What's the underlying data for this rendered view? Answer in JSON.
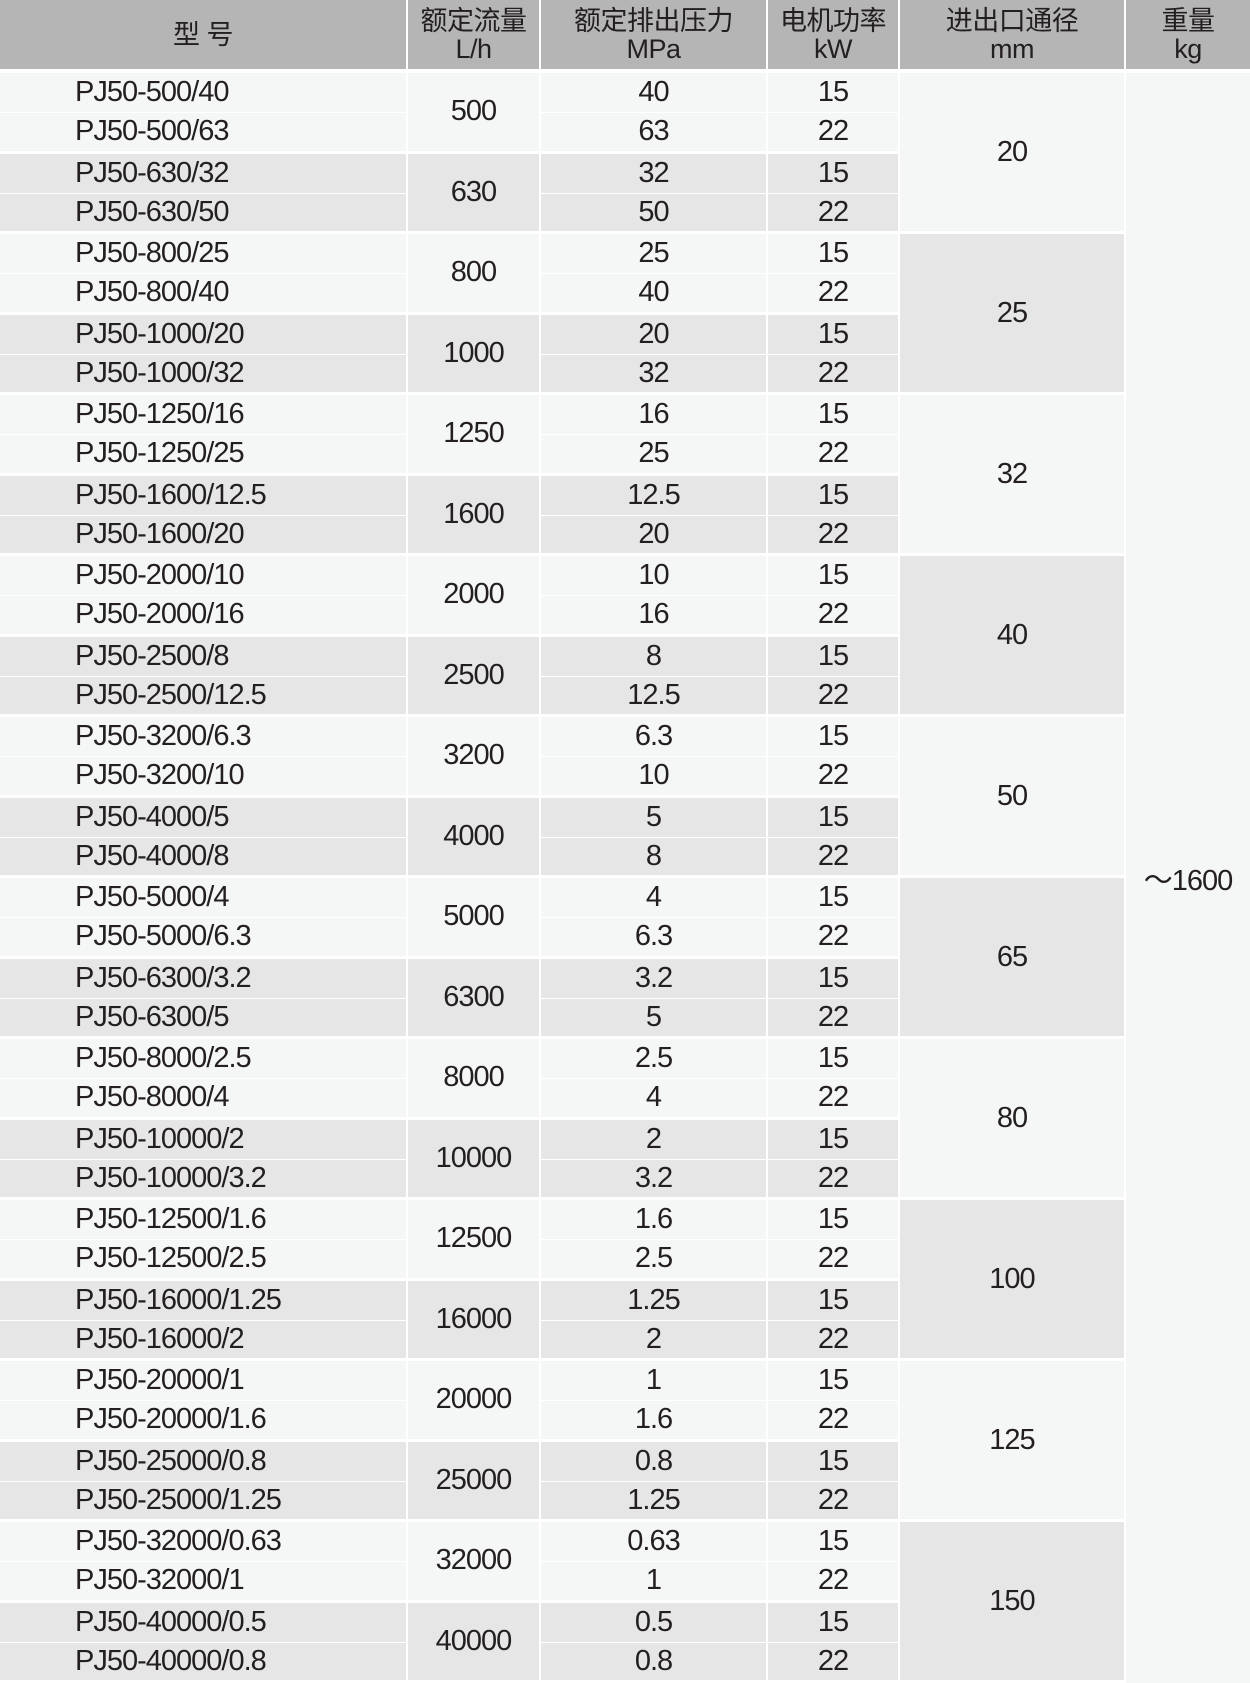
{
  "header": {
    "model": "型 号",
    "flow": "额定流量",
    "flow_unit": "L/h",
    "pressure": "额定排出压力",
    "pressure_unit": "MPa",
    "power": "电机功率",
    "power_unit": "kW",
    "diameter": "进出口通径",
    "diameter_unit": "mm",
    "weight": "重量",
    "weight_unit": "kg"
  },
  "colors": {
    "header_bg": "#b5b5b6",
    "row_light": "#f5f6f6",
    "row_gray": "#e6e6e7",
    "text": "#231f20"
  },
  "rows": [
    {
      "model": "PJ50-500/40",
      "pressure": "40",
      "power": "15"
    },
    {
      "model": "PJ50-500/63",
      "pressure": "63",
      "power": "22"
    },
    {
      "model": "PJ50-630/32",
      "pressure": "32",
      "power": "15"
    },
    {
      "model": "PJ50-630/50",
      "pressure": "50",
      "power": "22"
    },
    {
      "model": "PJ50-800/25",
      "pressure": "25",
      "power": "15"
    },
    {
      "model": "PJ50-800/40",
      "pressure": "40",
      "power": "22"
    },
    {
      "model": "PJ50-1000/20",
      "pressure": "20",
      "power": "15"
    },
    {
      "model": "PJ50-1000/32",
      "pressure": "32",
      "power": "22"
    },
    {
      "model": "PJ50-1250/16",
      "pressure": "16",
      "power": "15"
    },
    {
      "model": "PJ50-1250/25",
      "pressure": "25",
      "power": "22"
    },
    {
      "model": "PJ50-1600/12.5",
      "pressure": "12.5",
      "power": "15"
    },
    {
      "model": "PJ50-1600/20",
      "pressure": "20",
      "power": "22"
    },
    {
      "model": "PJ50-2000/10",
      "pressure": "10",
      "power": "15"
    },
    {
      "model": "PJ50-2000/16",
      "pressure": "16",
      "power": "22"
    },
    {
      "model": "PJ50-2500/8",
      "pressure": "8",
      "power": "15"
    },
    {
      "model": "PJ50-2500/12.5",
      "pressure": "12.5",
      "power": "22"
    },
    {
      "model": "PJ50-3200/6.3",
      "pressure": "6.3",
      "power": "15"
    },
    {
      "model": "PJ50-3200/10",
      "pressure": "10",
      "power": "22"
    },
    {
      "model": "PJ50-4000/5",
      "pressure": "5",
      "power": "15"
    },
    {
      "model": "PJ50-4000/8",
      "pressure": "8",
      "power": "22"
    },
    {
      "model": "PJ50-5000/4",
      "pressure": "4",
      "power": "15"
    },
    {
      "model": "PJ50-5000/6.3",
      "pressure": "6.3",
      "power": "22"
    },
    {
      "model": "PJ50-6300/3.2",
      "pressure": "3.2",
      "power": "15"
    },
    {
      "model": "PJ50-6300/5",
      "pressure": "5",
      "power": "22"
    },
    {
      "model": "PJ50-8000/2.5",
      "pressure": "2.5",
      "power": "15"
    },
    {
      "model": "PJ50-8000/4",
      "pressure": "4",
      "power": "22"
    },
    {
      "model": "PJ50-10000/2",
      "pressure": "2",
      "power": "15"
    },
    {
      "model": "PJ50-10000/3.2",
      "pressure": "3.2",
      "power": "22"
    },
    {
      "model": "PJ50-12500/1.6",
      "pressure": "1.6",
      "power": "15"
    },
    {
      "model": "PJ50-12500/2.5",
      "pressure": "2.5",
      "power": "22"
    },
    {
      "model": "PJ50-16000/1.25",
      "pressure": "1.25",
      "power": "15"
    },
    {
      "model": "PJ50-16000/2",
      "pressure": "2",
      "power": "22"
    },
    {
      "model": "PJ50-20000/1",
      "pressure": "1",
      "power": "15"
    },
    {
      "model": "PJ50-20000/1.6",
      "pressure": "1.6",
      "power": "22"
    },
    {
      "model": "PJ50-25000/0.8",
      "pressure": "0.8",
      "power": "15"
    },
    {
      "model": "PJ50-25000/1.25",
      "pressure": "1.25",
      "power": "22"
    },
    {
      "model": "PJ50-32000/0.63",
      "pressure": "0.63",
      "power": "15"
    },
    {
      "model": "PJ50-32000/1",
      "pressure": "1",
      "power": "22"
    },
    {
      "model": "PJ50-40000/0.5",
      "pressure": "0.5",
      "power": "15"
    },
    {
      "model": "PJ50-40000/0.8",
      "pressure": "0.8",
      "power": "22"
    }
  ],
  "flows": [
    "500",
    "630",
    "800",
    "1000",
    "1250",
    "1600",
    "2000",
    "2500",
    "3200",
    "4000",
    "5000",
    "6300",
    "8000",
    "10000",
    "12500",
    "16000",
    "20000",
    "25000",
    "32000",
    "40000"
  ],
  "diameters": [
    "20",
    "25",
    "32",
    "40",
    "50",
    "65",
    "80",
    "100",
    "125",
    "150"
  ],
  "weight": "～1600"
}
